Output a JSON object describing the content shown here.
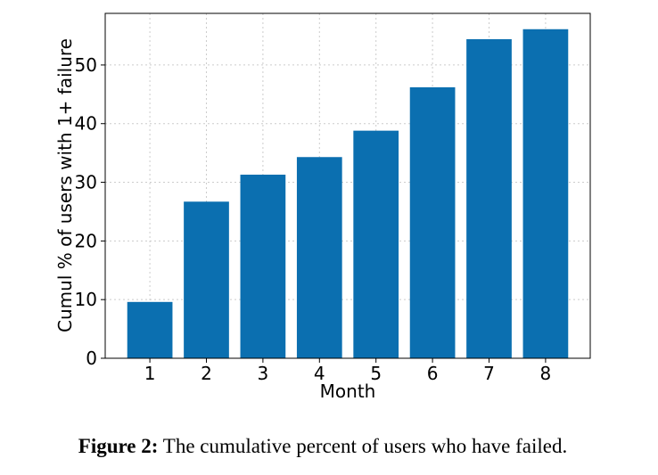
{
  "chart_data": {
    "type": "bar",
    "x": [
      1,
      2,
      3,
      4,
      5,
      6,
      7,
      8
    ],
    "values": [
      9.6,
      26.7,
      31.3,
      34.3,
      38.8,
      46.2,
      54.4,
      56.1
    ],
    "color": "#0b6fb0",
    "xlabel": "Month",
    "ylabel": "Cumul % of users with 1+ failure",
    "xlim": [
      0.21,
      8.79
    ],
    "xticks": [
      1,
      2,
      3,
      4,
      5,
      6,
      7,
      8
    ],
    "ylim": [
      0,
      58.8
    ],
    "yticks": [
      0,
      10,
      20,
      30,
      40,
      50
    ],
    "grid": true
  },
  "caption": {
    "label": "Figure 2:",
    "text": "The cumulative percent of users who have failed."
  }
}
